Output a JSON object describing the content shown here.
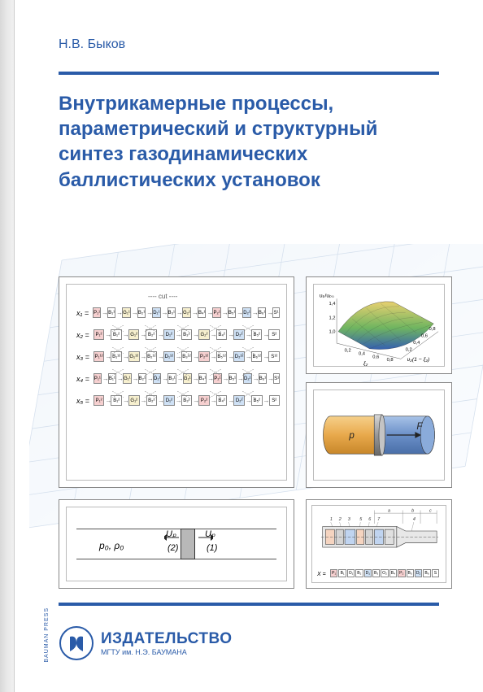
{
  "author": "Н.В. Быков",
  "title": "Внутрикамерные процессы, параметрический и структурный синтез газодинамических баллистических установок",
  "publisher": {
    "main": "ИЗДАТЕЛЬСТВО",
    "sub": "МГТУ им. Н.Э. БАУМАНА",
    "side": "BAUMAN PRESS"
  },
  "colors": {
    "brand": "#2a5ba8",
    "panel_border": "#888888",
    "cell_red": "#f6d0d0",
    "cell_blue": "#cfe1f5",
    "cell_yellow": "#f7f0cf",
    "cell_white": "#ffffff",
    "piston_fill": "#b8b8b8",
    "cylinder_left": "#e8a94c",
    "cylinder_right": "#6a8fc8",
    "surface_top": "#e8d070",
    "surface_mid": "#6fb560",
    "surface_low": "#3560b0"
  },
  "panel1": {
    "cut_label": "---- cut ----",
    "rows": [
      {
        "label": "x₁ =",
        "cells": [
          {
            "t": "P₁¹",
            "c": "c-red"
          },
          {
            "t": "B₁¹",
            "c": "c-wht"
          },
          {
            "t": "G₁¹",
            "c": "c-yel"
          },
          {
            "t": "B₂¹",
            "c": "c-wht"
          },
          {
            "t": "D₁¹",
            "c": "c-blue"
          },
          {
            "t": "B₃¹",
            "c": "c-wht"
          },
          {
            "t": "G₂¹",
            "c": "c-yel"
          },
          {
            "t": "B₄¹",
            "c": "c-wht"
          },
          {
            "t": "P₂¹",
            "c": "c-red"
          },
          {
            "t": "B₅¹",
            "c": "c-wht"
          },
          {
            "t": "D₂¹",
            "c": "c-blue"
          },
          {
            "t": "B₆¹",
            "c": "c-wht"
          },
          {
            "t": "S¹",
            "c": "c-wht"
          }
        ]
      },
      {
        "label": "x₂ =",
        "cells": [
          {
            "t": "P₁²",
            "c": "c-red"
          },
          {
            "t": "B₁²",
            "c": "c-wht"
          },
          {
            "t": "G₁²",
            "c": "c-yel"
          },
          {
            "t": "B₂²",
            "c": "c-wht"
          },
          {
            "t": "D₁²",
            "c": "c-blue"
          },
          {
            "t": "B₃²",
            "c": "c-wht"
          },
          {
            "t": "G₂²",
            "c": "c-yel"
          },
          {
            "t": "B₄²",
            "c": "c-wht"
          },
          {
            "t": "D₂²",
            "c": "c-blue"
          },
          {
            "t": "B₅²",
            "c": "c-wht"
          },
          {
            "t": "S²",
            "c": "c-wht"
          }
        ]
      },
      {
        "label": "x₃ =",
        "cells": [
          {
            "t": "P₁¹²",
            "c": "c-red"
          },
          {
            "t": "B₁¹²",
            "c": "c-wht"
          },
          {
            "t": "G₁¹²",
            "c": "c-yel"
          },
          {
            "t": "B₂¹²",
            "c": "c-wht"
          },
          {
            "t": "D₁¹²",
            "c": "c-blue"
          },
          {
            "t": "B₃¹²",
            "c": "c-wht"
          },
          {
            "t": "P₂¹²",
            "c": "c-red"
          },
          {
            "t": "B₅¹²",
            "c": "c-wht"
          },
          {
            "t": "D₂¹²",
            "c": "c-blue"
          },
          {
            "t": "B₆¹²",
            "c": "c-wht"
          },
          {
            "t": "S¹²",
            "c": "c-wht"
          }
        ]
      },
      {
        "label": "x₄ =",
        "cells": [
          {
            "t": "P₁¹",
            "c": "c-red"
          },
          {
            "t": "B₁¹",
            "c": "c-wht"
          },
          {
            "t": "G₁¹",
            "c": "c-yel"
          },
          {
            "t": "B₂¹",
            "c": "c-wht"
          },
          {
            "t": "D₁¹",
            "c": "c-blue"
          },
          {
            "t": "B₃¹",
            "c": "c-wht"
          },
          {
            "t": "G₂¹",
            "c": "c-yel"
          },
          {
            "t": "B₄¹",
            "c": "c-wht"
          },
          {
            "t": "P₂¹",
            "c": "c-red"
          },
          {
            "t": "B₅¹",
            "c": "c-wht"
          },
          {
            "t": "D₂¹",
            "c": "c-blue"
          },
          {
            "t": "B₆¹",
            "c": "c-wht"
          },
          {
            "t": "S¹",
            "c": "c-wht"
          }
        ]
      },
      {
        "label": "x₅ =",
        "cells": [
          {
            "t": "P₁²",
            "c": "c-red"
          },
          {
            "t": "B₁²",
            "c": "c-wht"
          },
          {
            "t": "G₁²",
            "c": "c-yel"
          },
          {
            "t": "B₂²",
            "c": "c-wht"
          },
          {
            "t": "D₁²",
            "c": "c-blue"
          },
          {
            "t": "B₃²",
            "c": "c-wht"
          },
          {
            "t": "P₂²",
            "c": "c-red"
          },
          {
            "t": "B₄²",
            "c": "c-wht"
          },
          {
            "t": "D₂²",
            "c": "c-blue"
          },
          {
            "t": "B₅²",
            "c": "c-wht"
          },
          {
            "t": "S²",
            "c": "c-wht"
          }
        ]
      }
    ]
  },
  "panel2": {
    "y_label": "uₚ/uₚ₀",
    "y_ticks": [
      "1,0",
      "1,2",
      "1,4"
    ],
    "x1_label": "ξ₂",
    "x1_ticks": [
      "0,2",
      "0,4",
      "0,6",
      "0,8"
    ],
    "x2_label": "υ₂(1 − ξ₂)",
    "x2_ticks": [
      "0,2",
      "0,4",
      "0,6",
      "0,8"
    ]
  },
  "panel3": {
    "p_label": "p",
    "f_label": "F"
  },
  "panel4": {
    "p0": "p₀, ρ₀",
    "up": "Uₚ",
    "n1": "(1)",
    "n2": "(2)"
  },
  "panel5": {
    "top_labels": [
      "1",
      "2",
      "3",
      "5",
      "6",
      "7",
      "4"
    ],
    "dim_labels": [
      "a",
      "b",
      "c"
    ],
    "x_label": "X =",
    "cells": [
      {
        "t": "P₁",
        "c": "c-red"
      },
      {
        "t": "B₁",
        "c": "c-wht"
      },
      {
        "t": "O₁",
        "c": "c-wht"
      },
      {
        "t": "B₂",
        "c": "c-wht"
      },
      {
        "t": "D₁",
        "c": "c-blue"
      },
      {
        "t": "B₃",
        "c": "c-wht"
      },
      {
        "t": "O₂",
        "c": "c-wht"
      },
      {
        "t": "B₄",
        "c": "c-wht"
      },
      {
        "t": "P₂",
        "c": "c-red"
      },
      {
        "t": "B₅",
        "c": "c-wht"
      },
      {
        "t": "D₂",
        "c": "c-blue"
      },
      {
        "t": "B₆",
        "c": "c-wht"
      },
      {
        "t": "S",
        "c": "c-wht"
      }
    ]
  }
}
